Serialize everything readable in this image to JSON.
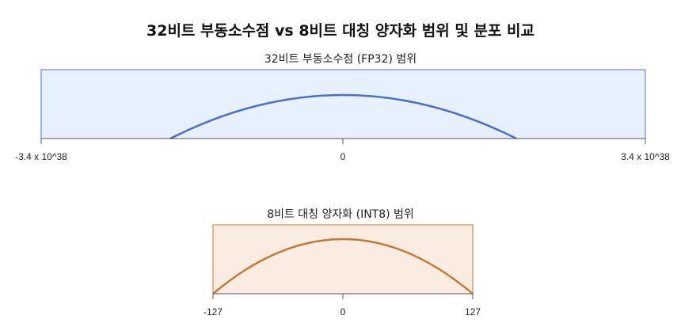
{
  "title": "32비트 부동소수점 vs 8비트 대칭 양자화 범위 및 분포 비교",
  "fp32": {
    "subtitle": "32비트 부동소수점 (FP32) 범위",
    "tick_labels": [
      "-3.4 x 10^38",
      "0",
      "3.4 x 10^38"
    ],
    "fill_color": "#e8f0fc",
    "stroke_color": "#4a6fc8"
  },
  "int8": {
    "subtitle": "8비트 대칭 양자화 (INT8) 범위",
    "tick_labels": [
      "-127",
      "0",
      "127"
    ],
    "fill_color": "#fbece2",
    "stroke_color": "#c07a35"
  }
}
